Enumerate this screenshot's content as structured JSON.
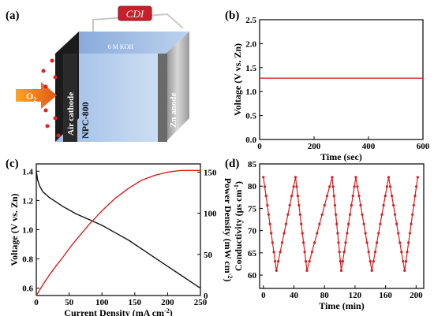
{
  "panel_labels": [
    "(a)",
    "(b)",
    "(c)",
    "(d)"
  ],
  "schematic": {
    "device_label": "CDI",
    "electrolyte_label": "6 M KOH",
    "gas_label": "O",
    "gas_subscript": "2",
    "cathode_label": "Air cathode",
    "catalyst_label": "NPC-800",
    "anode_label": "Zn anode"
  },
  "colors": {
    "red": "#d42020",
    "black": "#111111"
  },
  "chart_data": [
    {
      "panel": "(b)",
      "type": "line",
      "xlabel": "Time (sec)",
      "ylabel": "Voltage (V vs. Zn)",
      "xlim": [
        0,
        600
      ],
      "ylim": [
        0.0,
        2.5
      ],
      "xticks": [
        0,
        200,
        400,
        600
      ],
      "yticks": [
        0.0,
        0.5,
        1.0,
        1.5,
        2.0,
        2.5
      ],
      "series": [
        {
          "color": "#d42020",
          "x": [
            0,
            600
          ],
          "y": [
            1.28,
            1.28
          ]
        }
      ]
    },
    {
      "panel": "(c)",
      "type": "line",
      "xlabel": "Current Density (mA cm",
      "xlabel_sup": "-2",
      "xlabel_end": ")",
      "ylabel": "Voltage (V vs. Zn)",
      "y2label": "Power Density (mW cm",
      "y2label_sup": "-2",
      "y2label_end": ")",
      "xlim": [
        0,
        250
      ],
      "ylim": [
        0.55,
        1.45
      ],
      "y2lim": [
        0,
        160
      ],
      "xticks": [
        0,
        50,
        100,
        150,
        200,
        250
      ],
      "yticks": [
        0.6,
        0.8,
        1.0,
        1.2,
        1.4
      ],
      "y2ticks": [
        0,
        50,
        100,
        150
      ],
      "series": [
        {
          "axis": "left",
          "color": "#111111",
          "x": [
            0,
            2,
            5,
            10,
            20,
            30,
            40,
            50,
            60,
            80,
            100,
            120,
            140,
            160,
            180,
            200,
            220,
            240,
            250
          ],
          "y": [
            1.4,
            1.34,
            1.3,
            1.26,
            1.22,
            1.19,
            1.16,
            1.135,
            1.11,
            1.07,
            1.03,
            0.98,
            0.93,
            0.87,
            0.81,
            0.75,
            0.69,
            0.63,
            0.6
          ]
        },
        {
          "axis": "right",
          "color": "#d42020",
          "x": [
            0,
            10,
            20,
            30,
            40,
            50,
            60,
            80,
            100,
            120,
            140,
            160,
            180,
            200,
            220,
            240,
            250
          ],
          "y": [
            0,
            13,
            25,
            36,
            46,
            57,
            67,
            86,
            103,
            118,
            130,
            140,
            146,
            150,
            152,
            152,
            152
          ]
        }
      ]
    },
    {
      "panel": "(d)",
      "type": "line",
      "xlabel": "Time (min)",
      "ylabel": "Conductivity (μs cm",
      "ylabel_sup": "-1",
      "ylabel_end": ")",
      "xlim": [
        -5,
        210
      ],
      "ylim": [
        57,
        85
      ],
      "xticks": [
        0,
        40,
        80,
        120,
        160,
        200
      ],
      "yticks": [
        60,
        65,
        70,
        75,
        80,
        85
      ],
      "series": [
        {
          "color": "#d42020",
          "x": [
            0,
            17,
            42,
            57,
            90,
            102,
            121,
            142,
            164,
            185,
            202
          ],
          "y": [
            82,
            61,
            82,
            61,
            82,
            61,
            82,
            61,
            82,
            61,
            82
          ]
        }
      ]
    }
  ]
}
